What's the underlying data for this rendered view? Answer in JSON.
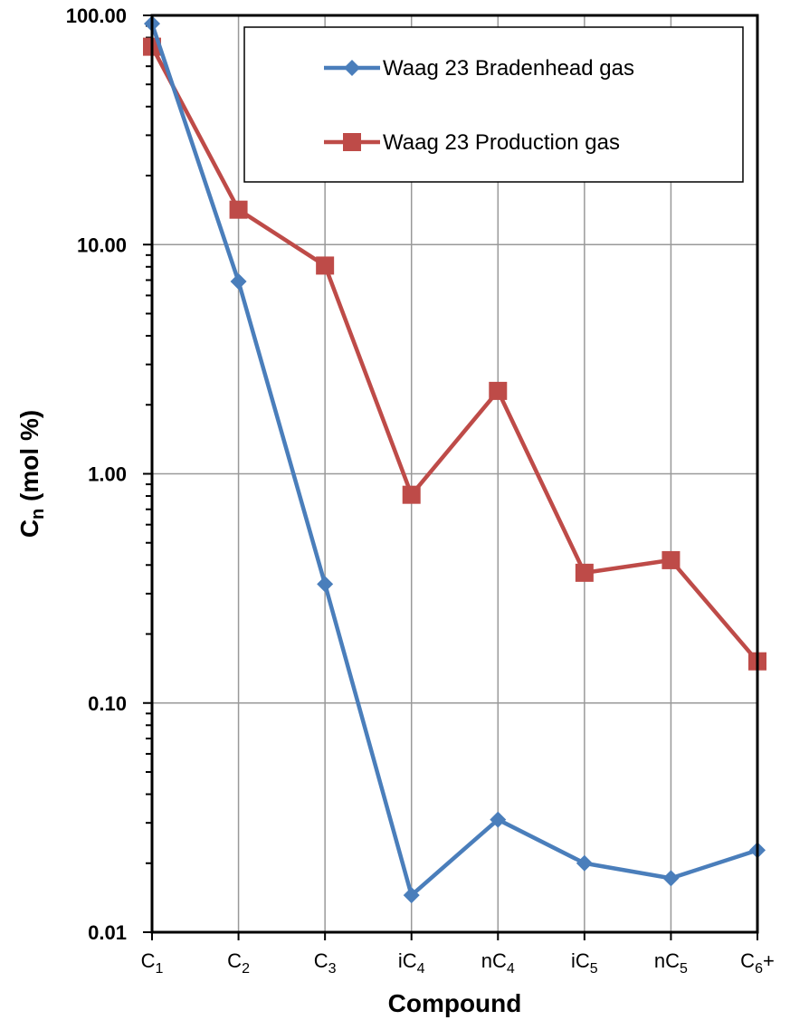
{
  "chart_data": {
    "type": "line",
    "yscale": "log",
    "ylim": [
      0.01,
      100
    ],
    "y_tick_labels": [
      "100.00",
      "10.00",
      "1.00",
      "0.10",
      "0.01"
    ],
    "y_tick_values": [
      100,
      10,
      1,
      0.1,
      0.01
    ],
    "ylabel": "C",
    "ylabel_sub": "n",
    "ylabel_suffix": " (mol %)",
    "xlabel": "Compound",
    "categories": [
      {
        "base": "C",
        "sub": "1",
        "suffix": ""
      },
      {
        "base": "C",
        "sub": "2",
        "suffix": ""
      },
      {
        "base": "C",
        "sub": "3",
        "suffix": ""
      },
      {
        "base": "iC",
        "sub": "4",
        "suffix": ""
      },
      {
        "base": "nC",
        "sub": "4",
        "suffix": ""
      },
      {
        "base": "iC",
        "sub": "5",
        "suffix": ""
      },
      {
        "base": "nC",
        "sub": "5",
        "suffix": ""
      },
      {
        "base": "C",
        "sub": "6",
        "suffix": "+"
      }
    ],
    "grid": true,
    "legend_position": "top-right",
    "series": [
      {
        "name": "Waag 23 Bradenhead gas",
        "color": "#4a7ebb",
        "marker": "diamond",
        "values": [
          92,
          6.9,
          0.33,
          0.0145,
          0.031,
          0.02,
          0.0172,
          0.0228
        ]
      },
      {
        "name": "Waag 23 Production gas",
        "color": "#be4b48",
        "marker": "square",
        "values": [
          73,
          14.2,
          8.1,
          0.81,
          2.3,
          0.37,
          0.42,
          0.152
        ]
      }
    ]
  }
}
